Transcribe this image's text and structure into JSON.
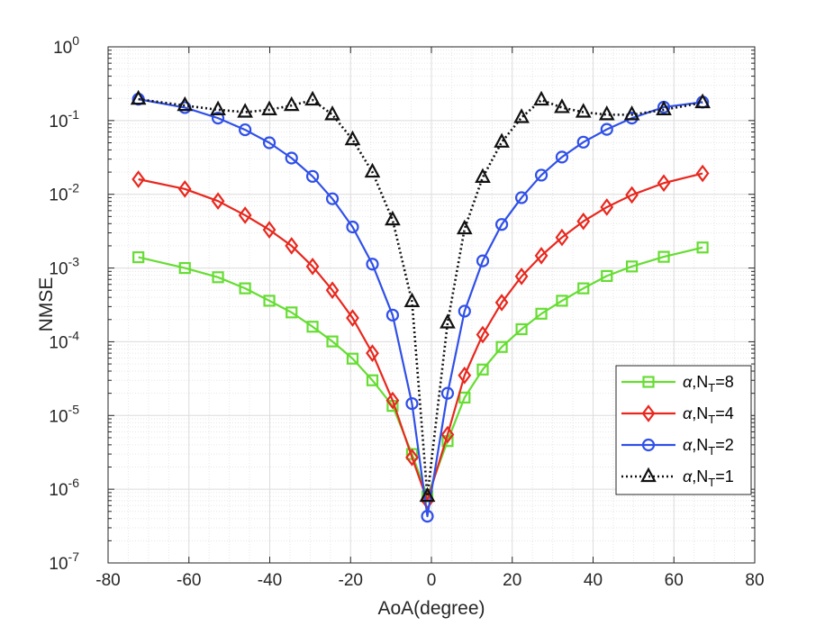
{
  "chart_data": {
    "type": "line",
    "xlabel": "AoA(degree)",
    "ylabel": "NMSE",
    "xlim": [
      -80,
      80
    ],
    "ylim": [
      1e-07,
      1
    ],
    "yscale": "log",
    "grid": true,
    "minor_grid": true,
    "legend_position": "lower-right",
    "x_ticks": [
      -80,
      -60,
      -40,
      -20,
      0,
      20,
      40,
      60,
      80
    ],
    "x_tick_labels": [
      "-80",
      "-60",
      "-40",
      "-20",
      "0",
      "20",
      "40",
      "60",
      "80"
    ],
    "y_tick_exponents": [
      -7,
      -6,
      -5,
      -4,
      -3,
      -2,
      -1,
      0
    ],
    "y_tick_base": "10",
    "series": [
      {
        "name_symbol": "α",
        "name_prefix": ",N",
        "name_sub": "T",
        "name_suffix": "=8",
        "color": "#66dd33",
        "marker": "square",
        "dash": "solid",
        "x": [
          -72.5,
          -61,
          -52.8,
          -46.1,
          -40.1,
          -34.6,
          -29.4,
          -24.5,
          -19.5,
          -14.6,
          -9.6,
          -4.8,
          -1,
          4,
          8.2,
          12.7,
          17.4,
          22.3,
          27.2,
          32.3,
          37.6,
          43.4,
          49.6,
          57.5,
          67.1
        ],
        "y": [
          0.0014,
          0.001,
          0.00075,
          0.00053,
          0.00036,
          0.00025,
          0.00016,
          0.000101,
          5.9e-05,
          3e-05,
          1.35e-05,
          3e-06,
          8e-07,
          4.5e-06,
          1.75e-05,
          4.2e-05,
          8.5e-05,
          0.000148,
          0.00024,
          0.00036,
          0.00053,
          0.00078,
          0.00105,
          0.00142,
          0.0019
        ]
      },
      {
        "name_symbol": "α",
        "name_prefix": ",N",
        "name_sub": "T",
        "name_suffix": "=4",
        "color": "#e8281e",
        "marker": "diamond",
        "dash": "solid",
        "x": [
          -72.5,
          -61,
          -52.8,
          -46.1,
          -40.1,
          -34.6,
          -29.4,
          -24.5,
          -19.5,
          -14.6,
          -9.6,
          -4.8,
          -1,
          4,
          8.2,
          12.7,
          17.4,
          22.3,
          27.2,
          32.3,
          37.6,
          43.4,
          49.6,
          57.5,
          67.1
        ],
        "y": [
          0.016,
          0.0118,
          0.0081,
          0.0052,
          0.0033,
          0.002,
          0.00105,
          0.0005,
          0.00021,
          7e-05,
          1.6e-05,
          2.7e-06,
          7e-07,
          5.5e-06,
          3.5e-05,
          0.000125,
          0.00034,
          0.00077,
          0.00147,
          0.0026,
          0.0043,
          0.0067,
          0.0098,
          0.0142,
          0.0192
        ]
      },
      {
        "name_symbol": "α",
        "name_prefix": ",N",
        "name_sub": "T",
        "name_suffix": "=2",
        "color": "#3050e8",
        "marker": "circle",
        "dash": "solid",
        "x": [
          -72.5,
          -61,
          -52.8,
          -46.1,
          -40.1,
          -34.6,
          -29.4,
          -24.5,
          -19.5,
          -14.6,
          -9.6,
          -4.8,
          -1,
          4,
          8.2,
          12.7,
          17.4,
          22.3,
          27.2,
          32.3,
          37.6,
          43.4,
          49.6,
          57.5,
          67.1
        ],
        "y": [
          0.195,
          0.15,
          0.108,
          0.075,
          0.05,
          0.031,
          0.0175,
          0.0087,
          0.0036,
          0.00113,
          0.00023,
          1.45e-05,
          4.3e-07,
          2e-05,
          0.00026,
          0.00125,
          0.0039,
          0.009,
          0.0182,
          0.032,
          0.051,
          0.076,
          0.108,
          0.152,
          0.178
        ]
      },
      {
        "name_symbol": "α",
        "name_prefix": ",N",
        "name_sub": "T",
        "name_suffix": "=1",
        "color": "#111111",
        "marker": "triangle",
        "dash": "dotted",
        "x": [
          -72.5,
          -61,
          -52.8,
          -46.1,
          -40.1,
          -34.6,
          -29.4,
          -24.5,
          -19.5,
          -14.6,
          -9.6,
          -4.8,
          -1,
          4,
          8.2,
          12.7,
          17.4,
          22.3,
          27.2,
          32.3,
          37.6,
          43.4,
          49.6,
          57.5,
          67.1
        ],
        "y": [
          0.195,
          0.16,
          0.14,
          0.13,
          0.14,
          0.16,
          0.19,
          0.12,
          0.055,
          0.02,
          0.0045,
          0.00035,
          8e-07,
          0.00018,
          0.0034,
          0.017,
          0.051,
          0.11,
          0.19,
          0.15,
          0.13,
          0.12,
          0.12,
          0.14,
          0.175
        ]
      }
    ]
  }
}
